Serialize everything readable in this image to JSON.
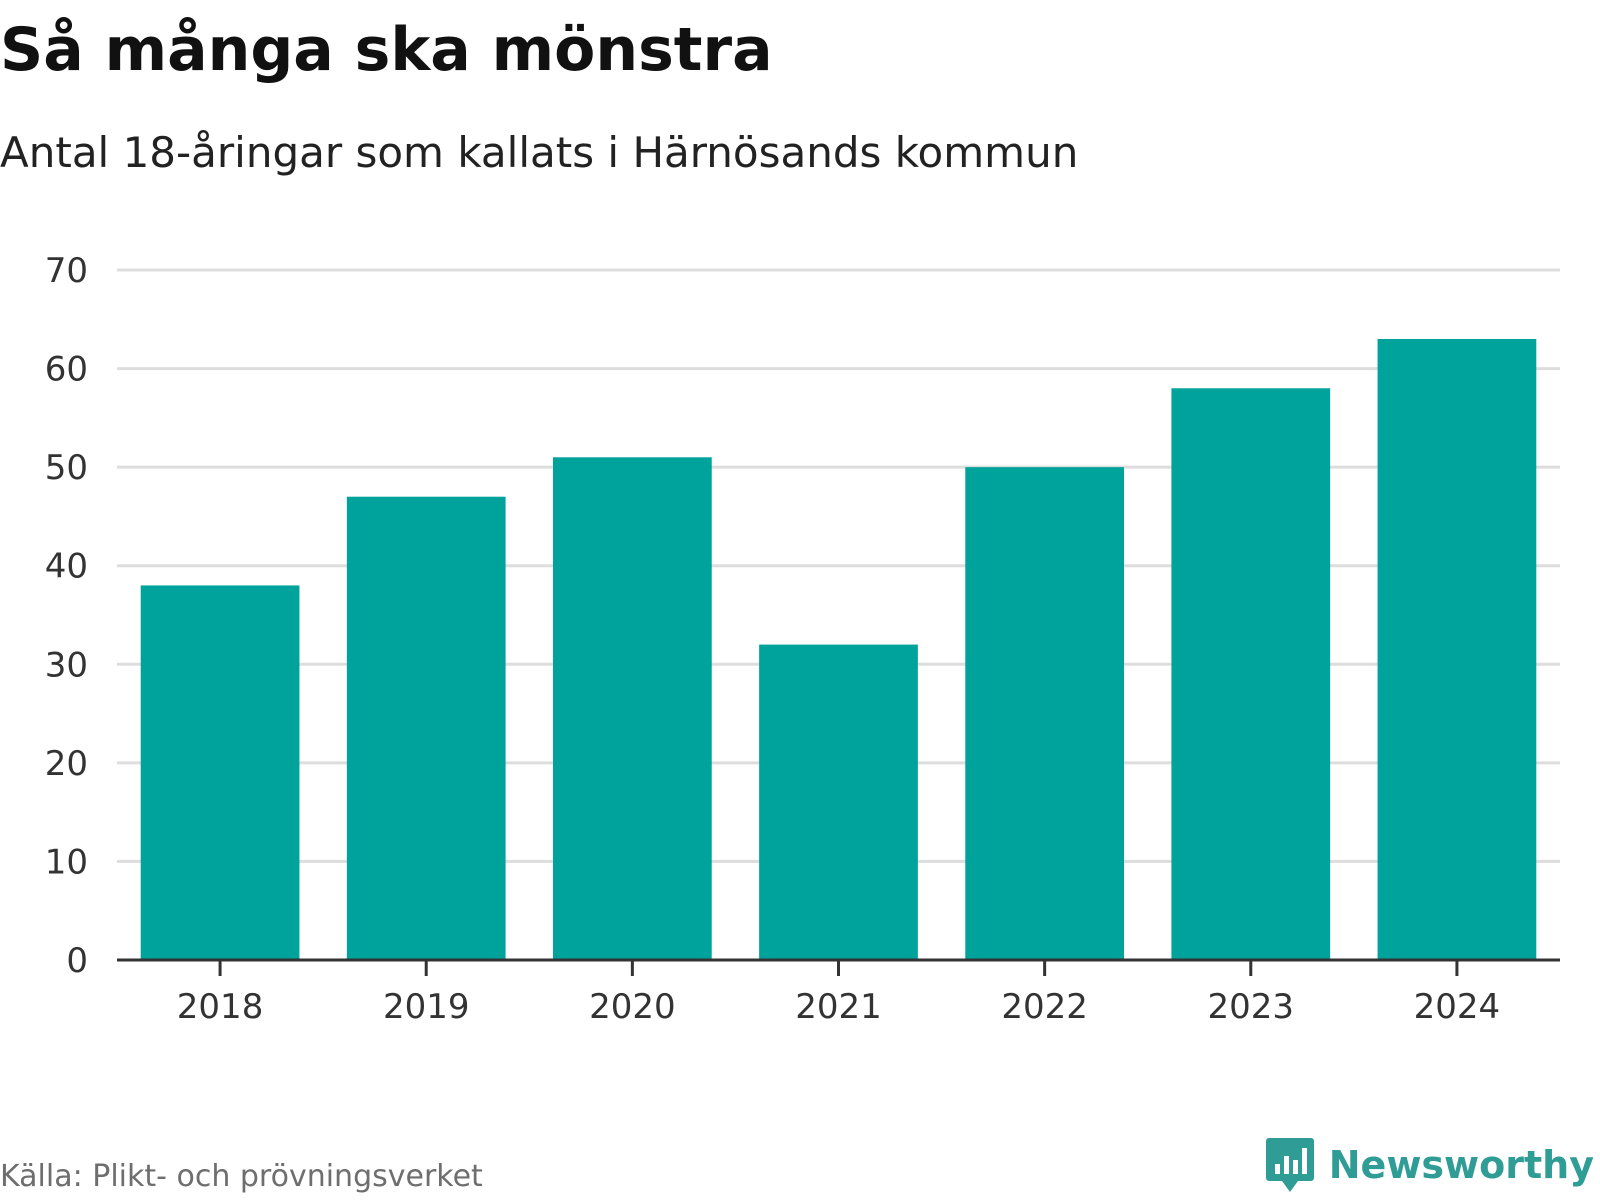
{
  "header": {
    "title": "Så många ska mönstra",
    "subtitle": "Antal 18-åringar som kallats i Härnösands kommun"
  },
  "footer": {
    "source": "Källa: Plikt- och prövningsverket",
    "brand": "Newsworthy",
    "brand_icon": "bar-chart-speech-bubble-icon"
  },
  "colors": {
    "bar": "#00a39b",
    "grid": "#dddddd",
    "axis": "#333333",
    "tick_text": "#333333",
    "brand": "#2f9d95"
  },
  "chart_data": {
    "type": "bar",
    "title": "Så många ska mönstra",
    "subtitle": "Antal 18-åringar som kallats i Härnösands kommun",
    "xlabel": "",
    "ylabel": "",
    "categories": [
      "2018",
      "2019",
      "2020",
      "2021",
      "2022",
      "2023",
      "2024"
    ],
    "values": [
      38,
      47,
      51,
      32,
      50,
      58,
      63
    ],
    "ylim": [
      0,
      70
    ],
    "yticks": [
      0,
      10,
      20,
      30,
      40,
      50,
      60,
      70
    ],
    "grid": true,
    "legend": "none"
  }
}
